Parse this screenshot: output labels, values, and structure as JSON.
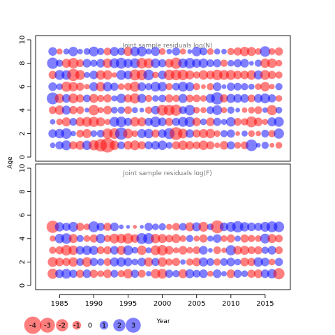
{
  "colors": {
    "positive": "#0000FF",
    "negative": "#FF0000",
    "bubble_alpha": 0.5,
    "panel_title": "#777777"
  },
  "chart_data": {
    "type": "scatter",
    "encoding": "bubble size = |residual|, blue = positive, red = negative",
    "xlabel": "Year",
    "ylabel": "Age",
    "x_ticks": [
      "1985",
      "1990",
      "1995",
      "2000",
      "2005",
      "2010",
      "2015"
    ],
    "x_range": [
      1984,
      2017
    ],
    "panels": [
      {
        "title": "Joint sample residuals log(N)",
        "y_ticks": [
          "0",
          "2",
          "4",
          "6",
          "8",
          "10"
        ],
        "ylim": [
          -0.2,
          10.2
        ],
        "ages": [
          1,
          2,
          3,
          4,
          5,
          6,
          7,
          8,
          9
        ],
        "years": [
          1984,
          1985,
          1986,
          1987,
          1988,
          1989,
          1990,
          1991,
          1992,
          1993,
          1994,
          1995,
          1996,
          1997,
          1998,
          1999,
          2000,
          2001,
          2002,
          2003,
          2004,
          2005,
          2006,
          2007,
          2008,
          2009,
          2010,
          2011,
          2012,
          2013,
          2014,
          2015,
          2016,
          2017
        ],
        "residuals": [
          [
            0.4,
            0.9,
            1.3,
            -0.9,
            -1.1,
            1.2,
            -1.4,
            -2.1,
            -2.8,
            -1.2,
            0.8,
            -1.0,
            -1.3,
            -0.9,
            0.9,
            1.0,
            1.2,
            0.6,
            -0.9,
            -1.2,
            -1.0,
            -0.8,
            -1.2,
            -0.9,
            -0.4,
            -1.0,
            0.9,
            -0.6,
            -0.8,
            1.8,
            0.3,
            0.7,
            -0.3,
            -0.6
          ],
          [
            1.0,
            1.2,
            1.5,
            0.4,
            -0.8,
            -1.1,
            0.6,
            0.8,
            -1.4,
            -1.5,
            2.0,
            -1.3,
            -0.6,
            1.1,
            1.2,
            -0.9,
            1.0,
            1.6,
            -2.2,
            -1.3,
            1.0,
            -0.9,
            -1.1,
            -1.2,
            -0.6,
            0.7,
            0.9,
            -0.3,
            0.5,
            -0.6,
            -0.4,
            0.8,
            -0.7,
            1.4
          ],
          [
            0.4,
            -0.6,
            -1.1,
            0.8,
            -1.1,
            -1.3,
            -1.4,
            -1.1,
            -0.5,
            1.3,
            1.5,
            0.9,
            -1.2,
            -1.1,
            0.9,
            1.5,
            1.0,
            -0.9,
            0.9,
            1.3,
            1.4,
            -1.0,
            0.6,
            -1.0,
            0.9,
            0.5,
            1.2,
            -0.8,
            -0.7,
            -1.6,
            -1.0,
            -0.5,
            1.1,
            1.3
          ],
          [
            -0.8,
            -1.2,
            1.1,
            -0.9,
            -0.8,
            0.3,
            -1.5,
            -0.5,
            -1.0,
            0.6,
            0.7,
            -0.8,
            0.5,
            0.3,
            -0.7,
            1.0,
            -1.6,
            -1.6,
            -1.7,
            0.8,
            1.5,
            -0.6,
            -0.5,
            0.8,
            1.3,
            -0.5,
            0.7,
            0.3,
            -0.4,
            -0.6,
            -0.8,
            0.4,
            -1.4,
            0.6
          ],
          [
            1.9,
            -1.2,
            1.0,
            -1.3,
            -0.9,
            0.8,
            -1.1,
            -0.7,
            -0.9,
            0.5,
            1.2,
            -0.9,
            -1.4,
            1.1,
            -0.7,
            0.6,
            0.8,
            -0.9,
            -0.7,
            1.1,
            -0.8,
            -0.8,
            -0.6,
            1.1,
            2.0,
            -0.9,
            1.1,
            1.0,
            1.0,
            -0.8,
            1.0,
            1.3,
            0.9,
            -0.6
          ],
          [
            1.0,
            0.6,
            -1.4,
            -1.2,
            -0.9,
            -0.4,
            1.1,
            -1.2,
            1.2,
            0.9,
            -0.6,
            -0.8,
            -1.4,
            1.0,
            0.7,
            1.3,
            1.2,
            -0.7,
            0.8,
            1.3,
            1.1,
            -0.7,
            -0.3,
            -0.7,
            1.0,
            0.3,
            0.9,
            0.8,
            0.7,
            0.5,
            -0.6,
            -1.2,
            -0.4,
            0.7
          ],
          [
            -0.9,
            1.3,
            1.2,
            -2.0,
            -1.3,
            0.5,
            1.0,
            -1.2,
            -1.2,
            -0.4,
            1.3,
            1.0,
            -1.6,
            -1.5,
            1.5,
            -0.6,
            1.0,
            -1.5,
            -1.5,
            -1.5,
            -1.1,
            -0.7,
            -1.2,
            -1.0,
            -1.5,
            -1.3,
            -1.3,
            -1.0,
            -1.0,
            -1.2,
            1.1,
            -1.3,
            -0.9,
            -0.7
          ],
          [
            1.7,
            0.7,
            -1.1,
            -1.5,
            -0.8,
            1.0,
            0.7,
            1.0,
            -1.2,
            1.3,
            1.6,
            1.1,
            1.3,
            -1.5,
            -1.3,
            1.2,
            0.9,
            -1.0,
            -1.7,
            1.2,
            1.5,
            1.1,
            1.2,
            0.8,
            0.9,
            -0.7,
            0.6,
            0.9,
            1.0,
            0.3,
            0.7,
            -1.2,
            -1.2,
            -0.6
          ],
          [
            1.0,
            -0.5,
            0.5,
            1.2,
            0.4,
            0.6,
            1.3,
            0.7,
            -0.8,
            1.1,
            0.8,
            -1.1,
            1.2,
            1.3,
            0.5,
            1.1,
            -0.6,
            0.4,
            0.9,
            -0.5,
            0.3,
            1.2,
            0.8,
            -0.6,
            0.5,
            0.4,
            -0.7,
            -0.9,
            -1.2,
            -1.1,
            -0.6,
            1.5,
            -0.6,
            -0.9
          ]
        ]
      },
      {
        "title": "Joint sample residuals log(F)",
        "y_ticks": [
          "0",
          "2",
          "4",
          "6",
          "8",
          "10"
        ],
        "ylim": [
          -0.2,
          10.2
        ],
        "ages": [
          1,
          2,
          3,
          4,
          5
        ],
        "years": [
          1984,
          1985,
          1986,
          1987,
          1988,
          1989,
          1990,
          1991,
          1992,
          1993,
          1994,
          1995,
          1996,
          1997,
          1998,
          1999,
          2000,
          2001,
          2002,
          2003,
          2004,
          2005,
          2006,
          2007,
          2008,
          2009,
          2010,
          2011,
          2012,
          2013,
          2014,
          2015,
          2016,
          2017
        ],
        "residuals": [
          [
            -1.4,
            1.0,
            1.3,
            0.9,
            -0.9,
            1.0,
            -0.9,
            -0.6,
            -1.0,
            0.8,
            -0.7,
            -1.2,
            0.9,
            -0.8,
            0.4,
            -1.2,
            -1.3,
            0.9,
            0.7,
            -1.1,
            1.1,
            0.8,
            1.0,
            -0.5,
            1.0,
            0.4,
            -1.0,
            0.9,
            0.6,
            -0.9,
            -1.0,
            1.0,
            1.2,
            -1.7
          ],
          [
            -1.3,
            -1.0,
            -0.9,
            -1.2,
            0.8,
            -1.3,
            0.9,
            0.7,
            -0.8,
            1.1,
            1.2,
            1.0,
            0.6,
            1.0,
            -1.1,
            0.9,
            -1.2,
            -0.7,
            -0.9,
            0.4,
            -0.7,
            -1.0,
            1.1,
            0.8,
            -0.7,
            0.8,
            1.0,
            0.6,
            -1.0,
            -0.9,
            1.2,
            1.0,
            -0.6,
            0.9
          ],
          [
            -0.7,
            -0.9,
            -1.5,
            -1.2,
            1.0,
            1.2,
            1.1,
            -0.8,
            -0.9,
            1.0,
            -1.1,
            1.3,
            0.6,
            -1.2,
            0.5,
            -1.3,
            -1.5,
            -1.0,
            -0.5,
            -1.0,
            -0.6,
            -0.8,
            1.0,
            0.3,
            -0.8,
            -0.4,
            1.4,
            -1.0,
            -1.1,
            -0.8,
            -0.9,
            0.7,
            1.0,
            -0.8
          ],
          [
            -0.5,
            1.2,
            1.5,
            -1.1,
            0.7,
            -0.6,
            -0.9,
            1.2,
            -0.7,
            -1.3,
            -1.2,
            -1.5,
            -1.0,
            1.6,
            1.6,
            -1.2,
            -1.1,
            -0.8,
            -1.1,
            -0.6,
            0.7,
            -0.5,
            -0.9,
            0.5,
            1.0,
            -0.6,
            -0.9,
            0.5,
            -0.9,
            -0.7,
            -0.6,
            1.3,
            -1.1,
            -0.8
          ],
          [
            -2.0,
            1.2,
            0.9,
            1.3,
            -0.9,
            -0.6,
            1.6,
            0.9,
            -0.9,
            1.0,
            0.3,
            0.2,
            -0.2,
            0.2,
            0.9,
            0.6,
            0.7,
            -0.5,
            -0.8,
            0.8,
            -1.1,
            1.1,
            -1.3,
            0.6,
            -2.2,
            1.0,
            1.3,
            1.7,
            1.2,
            1.0,
            0.9,
            1.3,
            1.6,
            1.5
          ]
        ]
      }
    ],
    "legend": {
      "placement": "bottom-left",
      "items": [
        {
          "label": "-4",
          "value": -4
        },
        {
          "label": "-3",
          "value": -3
        },
        {
          "label": "-2",
          "value": -2
        },
        {
          "label": "-1",
          "value": -1
        },
        {
          "label": "0",
          "value": 0
        },
        {
          "label": "1",
          "value": 1
        },
        {
          "label": "2",
          "value": 2
        },
        {
          "label": "3",
          "value": 3
        }
      ]
    }
  }
}
